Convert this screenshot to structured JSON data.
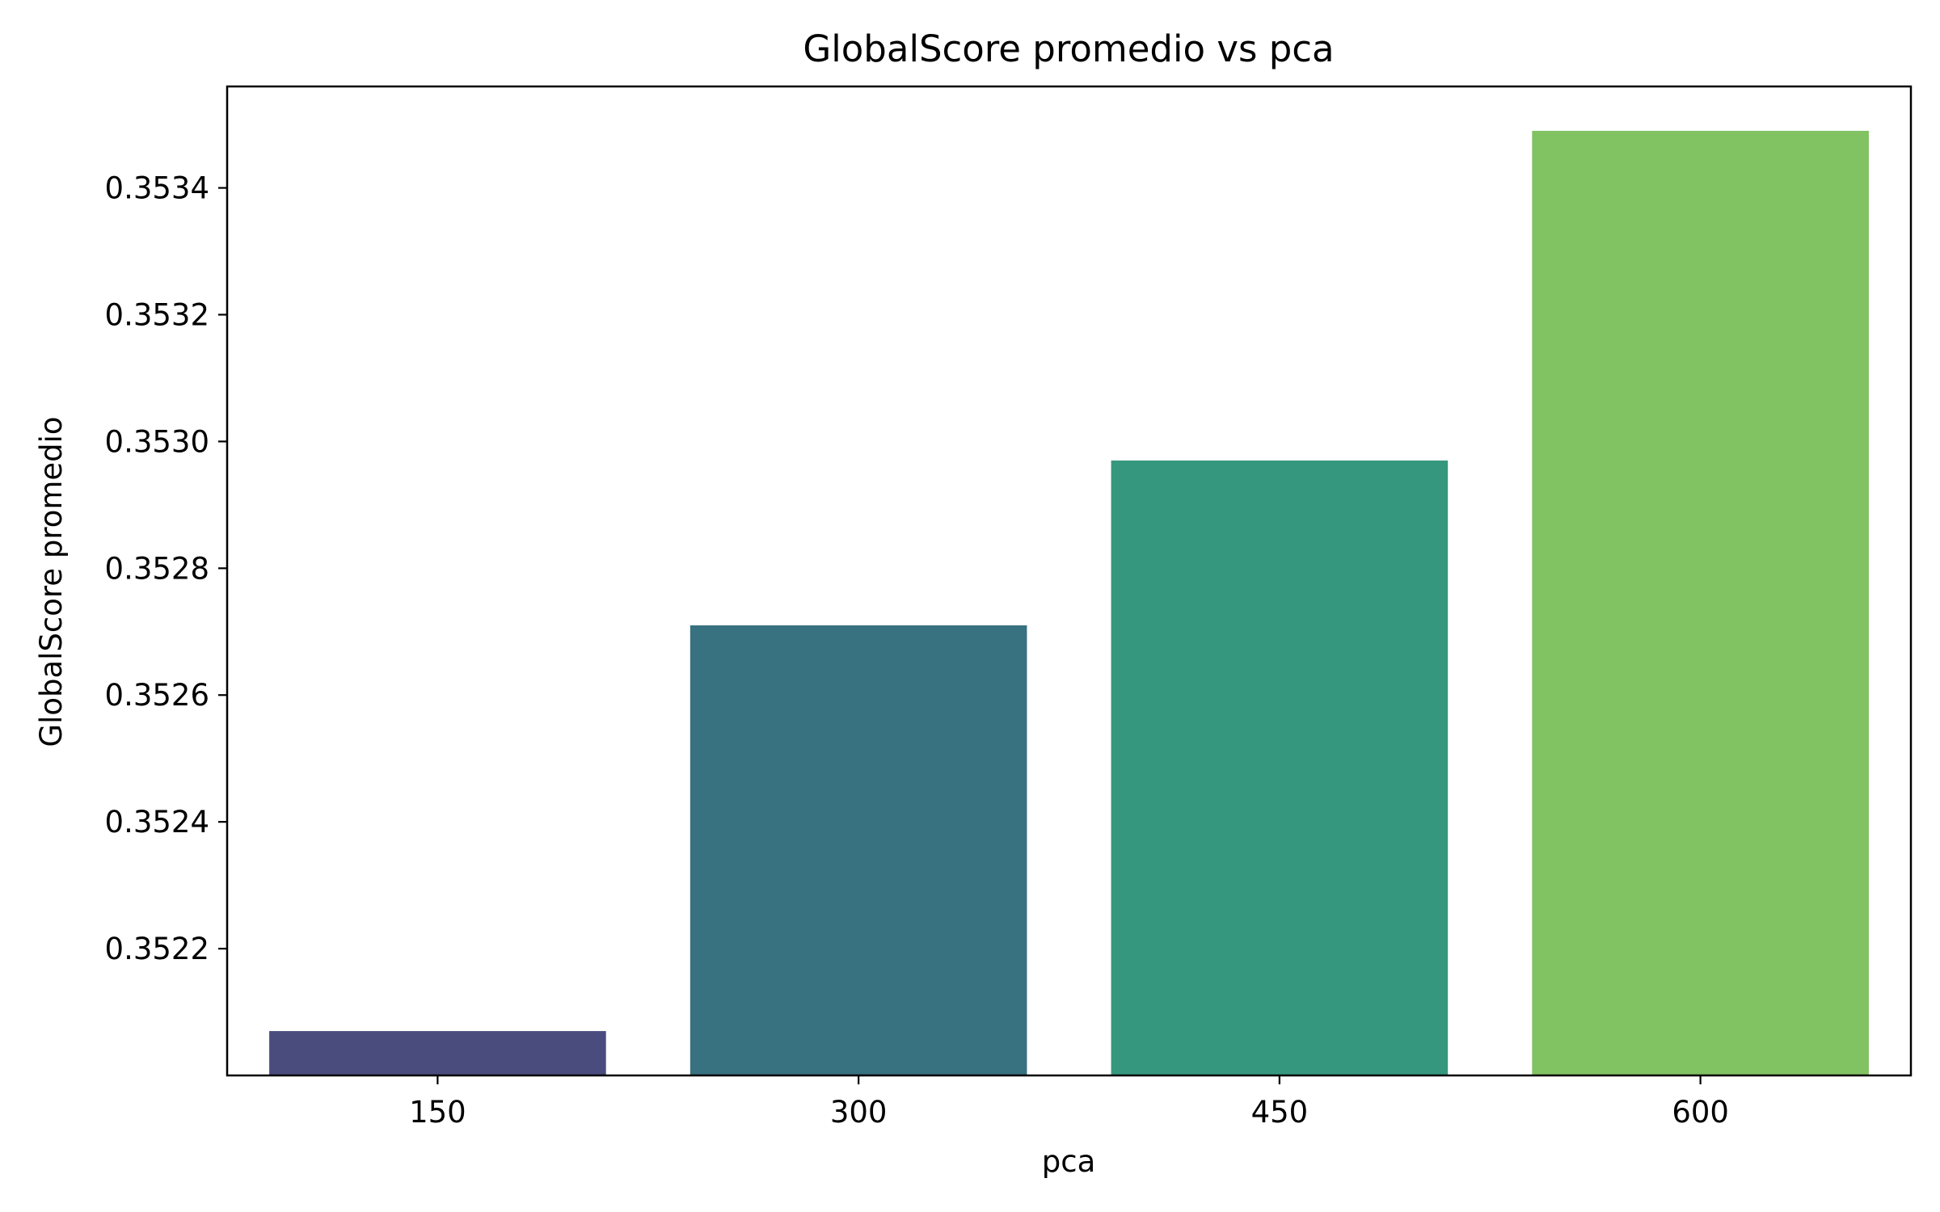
{
  "chart_data": {
    "type": "bar",
    "title": "GlobalScore promedio vs pca",
    "xlabel": "pca",
    "ylabel": "GlobalScore promedio",
    "categories": [
      "150",
      "300",
      "450",
      "600"
    ],
    "values": [
      0.35207,
      0.35271,
      0.35297,
      0.35349
    ],
    "colors": [
      "#4a4c7d",
      "#387180",
      "#35977e",
      "#81c263"
    ],
    "ylim": [
      0.352,
      0.35356
    ],
    "yticks": [
      0.3522,
      0.3524,
      0.3526,
      0.3528,
      0.353,
      0.3532,
      0.3534
    ],
    "ytick_labels": [
      "0.3522",
      "0.3524",
      "0.3526",
      "0.3528",
      "0.3530",
      "0.3532",
      "0.3534"
    ],
    "grid": false,
    "legend": "none"
  }
}
